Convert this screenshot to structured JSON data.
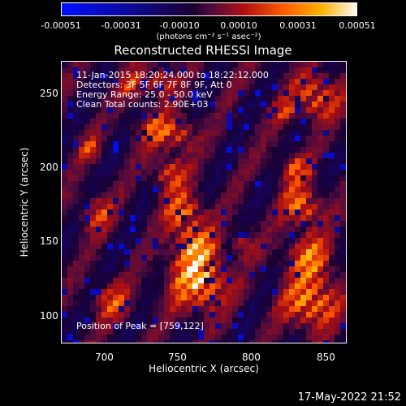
{
  "colorbar": {
    "ticks": [
      "-0.00051",
      "-0.00031",
      "-0.00010",
      "0.00010",
      "0.00031",
      "0.00051"
    ],
    "unit": "(photons cm⁻² s⁻¹ asec⁻²)"
  },
  "title": "Reconstructed RHESSI Image",
  "annotations": {
    "time": "11-Jan-2015 18:20:24.000 to 18:22:12.000",
    "detectors": "Detectors: 3F 5F 6F 7F 8F 9F, Att 0",
    "energy": "Energy Range: 25.0 - 50.0 keV",
    "clean": "Clean    Total counts: 2.90E+03",
    "peak": "Position of Peak = [759,122]"
  },
  "chart_data": {
    "type": "heatmap",
    "title": "Reconstructed RHESSI Image",
    "xlabel": "Heliocentric X (arcsec)",
    "ylabel": "Heliocentric Y (arcsec)",
    "xlim": [
      667,
      862
    ],
    "ylim": [
      80,
      272
    ],
    "xticks": [
      "700",
      "750",
      "800",
      "850"
    ],
    "yticks": [
      "100",
      "150",
      "200",
      "250"
    ],
    "colorbar_range": [
      -0.00051,
      0.00051
    ],
    "peak": [
      759,
      122
    ],
    "colors": [
      "#0010ff",
      "#1a0030",
      "#4a0a40",
      "#b01010",
      "#ff5a00",
      "#ffb000",
      "#fff8f0"
    ]
  },
  "footer": "17-May-2022 21:52"
}
